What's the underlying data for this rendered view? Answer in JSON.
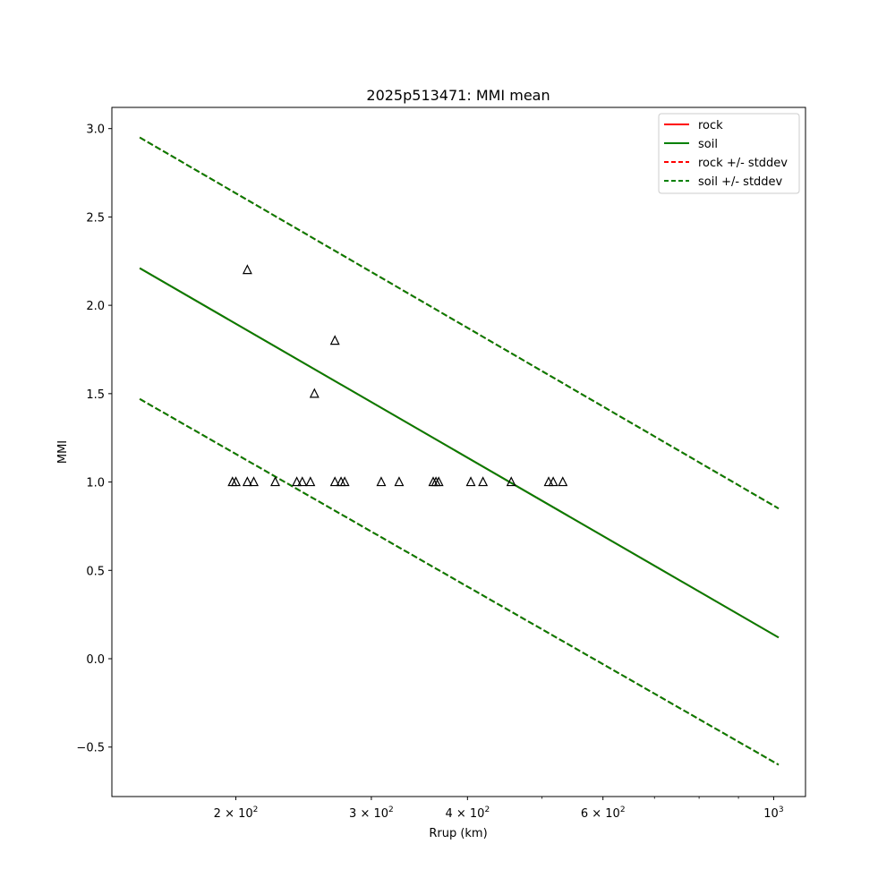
{
  "chart_data": {
    "type": "line",
    "title": "2025p513471: MMI mean",
    "xlabel": "Rrup (km)",
    "ylabel": "MMI",
    "xscale": "log",
    "xlim": [
      138,
      1100
    ],
    "ylim": [
      -0.78,
      3.12
    ],
    "grid": false,
    "legend_position": "top-right",
    "x_ticks": [
      {
        "value": 200,
        "label": "2 × 10^2"
      },
      {
        "value": 300,
        "label": "3 × 10^2"
      },
      {
        "value": 400,
        "label": "4 × 10^2"
      },
      {
        "value": 600,
        "label": "6 × 10^2"
      },
      {
        "value": 1000,
        "label": "10^3"
      }
    ],
    "x_minor_ticks": [
      500,
      700,
      800,
      900
    ],
    "y_ticks": [
      {
        "value": -0.5,
        "label": "−0.5"
      },
      {
        "value": 0.0,
        "label": "0.0"
      },
      {
        "value": 0.5,
        "label": "0.5"
      },
      {
        "value": 1.0,
        "label": "1.0"
      },
      {
        "value": 1.5,
        "label": "1.5"
      },
      {
        "value": 2.0,
        "label": "2.0"
      },
      {
        "value": 2.5,
        "label": "2.5"
      },
      {
        "value": 3.0,
        "label": "3.0"
      }
    ],
    "series": [
      {
        "name": "rock",
        "style": "solid",
        "color": "#ff0000",
        "x": [
          150,
          1015
        ],
        "y": [
          2.21,
          0.12
        ]
      },
      {
        "name": "soil",
        "style": "solid",
        "color": "#008000",
        "x": [
          150,
          1015
        ],
        "y": [
          2.21,
          0.12
        ]
      },
      {
        "name": "rock +/- stddev",
        "style": "dashed",
        "color": "#ff0000",
        "x": [
          150,
          1015
        ],
        "y_upper": [
          2.95,
          0.85
        ],
        "y_lower": [
          1.47,
          -0.6
        ]
      },
      {
        "name": "soil +/- stddev",
        "style": "dashed",
        "color": "#008000",
        "x": [
          150,
          1015
        ],
        "y_upper": [
          2.95,
          0.85
        ],
        "y_lower": [
          1.47,
          -0.6
        ]
      }
    ],
    "observations": {
      "marker": "triangle-open",
      "color": "#000000",
      "points": [
        {
          "x": 198,
          "y": 1.0
        },
        {
          "x": 200,
          "y": 1.0
        },
        {
          "x": 207,
          "y": 1.0
        },
        {
          "x": 211,
          "y": 1.0
        },
        {
          "x": 207,
          "y": 2.2
        },
        {
          "x": 225,
          "y": 1.0
        },
        {
          "x": 240,
          "y": 1.0
        },
        {
          "x": 244,
          "y": 1.0
        },
        {
          "x": 250,
          "y": 1.0
        },
        {
          "x": 253,
          "y": 1.5
        },
        {
          "x": 269,
          "y": 1.8
        },
        {
          "x": 269,
          "y": 1.0
        },
        {
          "x": 274,
          "y": 1.0
        },
        {
          "x": 277,
          "y": 1.0
        },
        {
          "x": 309,
          "y": 1.0
        },
        {
          "x": 326,
          "y": 1.0
        },
        {
          "x": 361,
          "y": 1.0
        },
        {
          "x": 364,
          "y": 1.0
        },
        {
          "x": 367,
          "y": 1.0
        },
        {
          "x": 404,
          "y": 1.0
        },
        {
          "x": 419,
          "y": 1.0
        },
        {
          "x": 456,
          "y": 1.0
        },
        {
          "x": 510,
          "y": 1.0
        },
        {
          "x": 517,
          "y": 1.0
        },
        {
          "x": 532,
          "y": 1.0
        }
      ]
    }
  }
}
